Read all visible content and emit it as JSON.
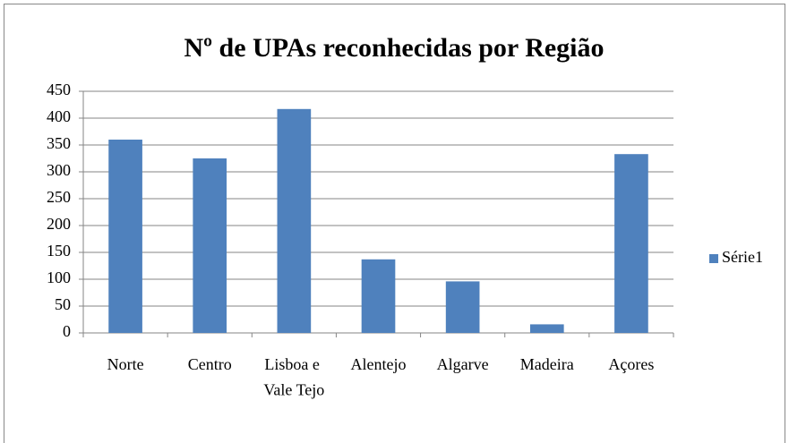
{
  "chart_data": {
    "type": "bar",
    "title": "Nº de UPAs reconhecidas por Região",
    "categories": [
      "Norte",
      "Centro",
      "Lisboa e Vale Tejo",
      "Alentejo",
      "Algarve",
      "Madeira",
      "Açores"
    ],
    "series": [
      {
        "name": "Série1",
        "color": "#4f81bd",
        "values": [
          360,
          325,
          417,
          137,
          96,
          16,
          333
        ]
      }
    ],
    "ylim": [
      0,
      450
    ],
    "yticks": [
      0,
      50,
      100,
      150,
      200,
      250,
      300,
      350,
      400,
      450
    ],
    "grid": true,
    "legend": "right"
  }
}
